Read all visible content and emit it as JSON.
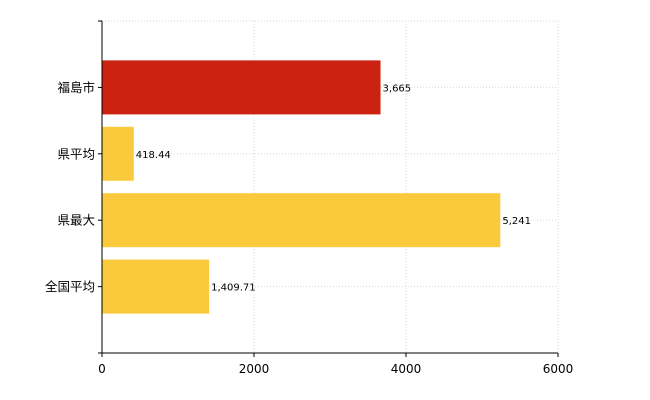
{
  "chart_data": {
    "type": "bar",
    "orientation": "horizontal",
    "categories": [
      "福島市",
      "県平均",
      "県最大",
      "全国平均"
    ],
    "values": [
      3665,
      418.44,
      5241,
      1409.71
    ],
    "value_labels": [
      "3,665",
      "418.44",
      "5,241",
      "1,409.71"
    ],
    "bar_colors": [
      "#cc2211",
      "#fac93c",
      "#fac93c",
      "#fac93c"
    ],
    "xlim": [
      0,
      6000
    ],
    "x_ticks": [
      0,
      2000,
      4000,
      6000
    ],
    "x_tick_labels": [
      "0",
      "2000",
      "4000",
      "6000"
    ],
    "title": "",
    "xlabel": "",
    "ylabel": "",
    "grid": true,
    "legend": "none"
  }
}
